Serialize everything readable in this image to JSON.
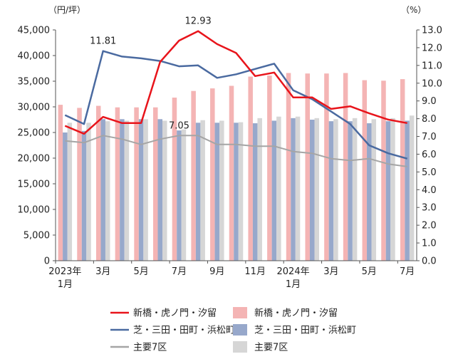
{
  "chart_data": {
    "type": "bar",
    "y_left_unit": "（円/坪）",
    "y_right_unit": "（%）",
    "ylim_left": [
      0,
      45000
    ],
    "ylim_right": [
      0.0,
      13.0
    ],
    "y_left_ticks": [
      "0",
      "5,000",
      "10,000",
      "15,000",
      "20,000",
      "25,000",
      "30,000",
      "35,000",
      "40,000",
      "45,000"
    ],
    "y_right_ticks": [
      "0.0",
      "1.0",
      "2.0",
      "3.0",
      "4.0",
      "5.0",
      "6.0",
      "7.0",
      "8.0",
      "9.0",
      "10.0",
      "11.0",
      "12.0",
      "13.0"
    ],
    "x_labels": [
      {
        "line1": "2023年",
        "line2": "1月"
      },
      {
        "line1": "3月",
        "line2": ""
      },
      {
        "line1": "5月",
        "line2": ""
      },
      {
        "line1": "7月",
        "line2": ""
      },
      {
        "line1": "9月",
        "line2": ""
      },
      {
        "line1": "11月",
        "line2": ""
      },
      {
        "line1": "2024年",
        "line2": "1月"
      },
      {
        "line1": "3月",
        "line2": ""
      },
      {
        "line1": "5月",
        "line2": ""
      },
      {
        "line1": "7月",
        "line2": ""
      }
    ],
    "bar_series": [
      {
        "name": "新橋・虎ノ門・汐留",
        "color": "#f4b4b4",
        "values": [
          30400,
          29800,
          30200,
          29900,
          29900,
          29900,
          31800,
          33100,
          33600,
          34100,
          35900,
          36100,
          36600,
          36500,
          36500,
          36600,
          35200,
          35100,
          35400
        ]
      },
      {
        "name": "芝・三田・田町・浜松町",
        "color": "#97a8cb",
        "values": [
          25000,
          25300,
          27600,
          27600,
          27600,
          27600,
          25400,
          26900,
          26900,
          26900,
          26800,
          27300,
          27800,
          27500,
          27200,
          27200,
          26800,
          27200,
          27300
        ]
      },
      {
        "name": "主要7区",
        "color": "#d6d6d6",
        "values": [
          26900,
          26900,
          27200,
          27300,
          27600,
          27300,
          25600,
          27400,
          27300,
          27000,
          27800,
          28100,
          28100,
          27800,
          27600,
          27800,
          27600,
          27800,
          28300
        ]
      }
    ],
    "line_series": [
      {
        "name": "新橋・虎ノ門・汐留",
        "color": "#e8141b",
        "values": [
          7.6,
          7.15,
          8.1,
          7.75,
          7.75,
          11.2,
          12.4,
          12.93,
          12.2,
          11.7,
          10.4,
          10.6,
          9.2,
          9.2,
          8.55,
          8.7,
          8.3,
          7.95,
          7.75
        ]
      },
      {
        "name": "芝・三田・田町・浜松町",
        "color": "#4a6aa0",
        "values": [
          8.2,
          7.7,
          11.81,
          11.5,
          11.4,
          11.25,
          10.95,
          11.0,
          10.3,
          10.5,
          10.8,
          11.1,
          9.6,
          9.1,
          8.4,
          7.7,
          6.5,
          6.05,
          5.75
        ]
      },
      {
        "name": "主要7区",
        "color": "#a5a5a5",
        "values": [
          6.75,
          6.65,
          7.05,
          6.85,
          6.55,
          6.85,
          7.05,
          7.05,
          6.55,
          6.55,
          6.45,
          6.45,
          6.15,
          6.05,
          5.75,
          5.65,
          5.75,
          5.45,
          5.3
        ]
      }
    ],
    "annotations": [
      {
        "text": "11.81",
        "series": 1,
        "index": 2
      },
      {
        "text": "12.93",
        "series": 0,
        "index": 7
      },
      {
        "text": "7.05",
        "series": 2,
        "index": 6
      }
    ],
    "legend": [
      {
        "label": "新橋・虎ノ門・汐留",
        "kind": "line",
        "color": "#e8141b"
      },
      {
        "label": "新橋・虎ノ門・汐留",
        "kind": "bar",
        "color": "#f4b4b4"
      },
      {
        "label": "芝・三田・田町・浜松町",
        "kind": "line",
        "color": "#4a6aa0"
      },
      {
        "label": "芝・三田・田町・浜松町",
        "kind": "bar",
        "color": "#97a8cb"
      },
      {
        "label": "主要7区",
        "kind": "line",
        "color": "#a5a5a5"
      },
      {
        "label": "主要7区",
        "kind": "bar",
        "color": "#d6d6d6"
      }
    ],
    "grid": false,
    "legend_position": "bottom"
  }
}
